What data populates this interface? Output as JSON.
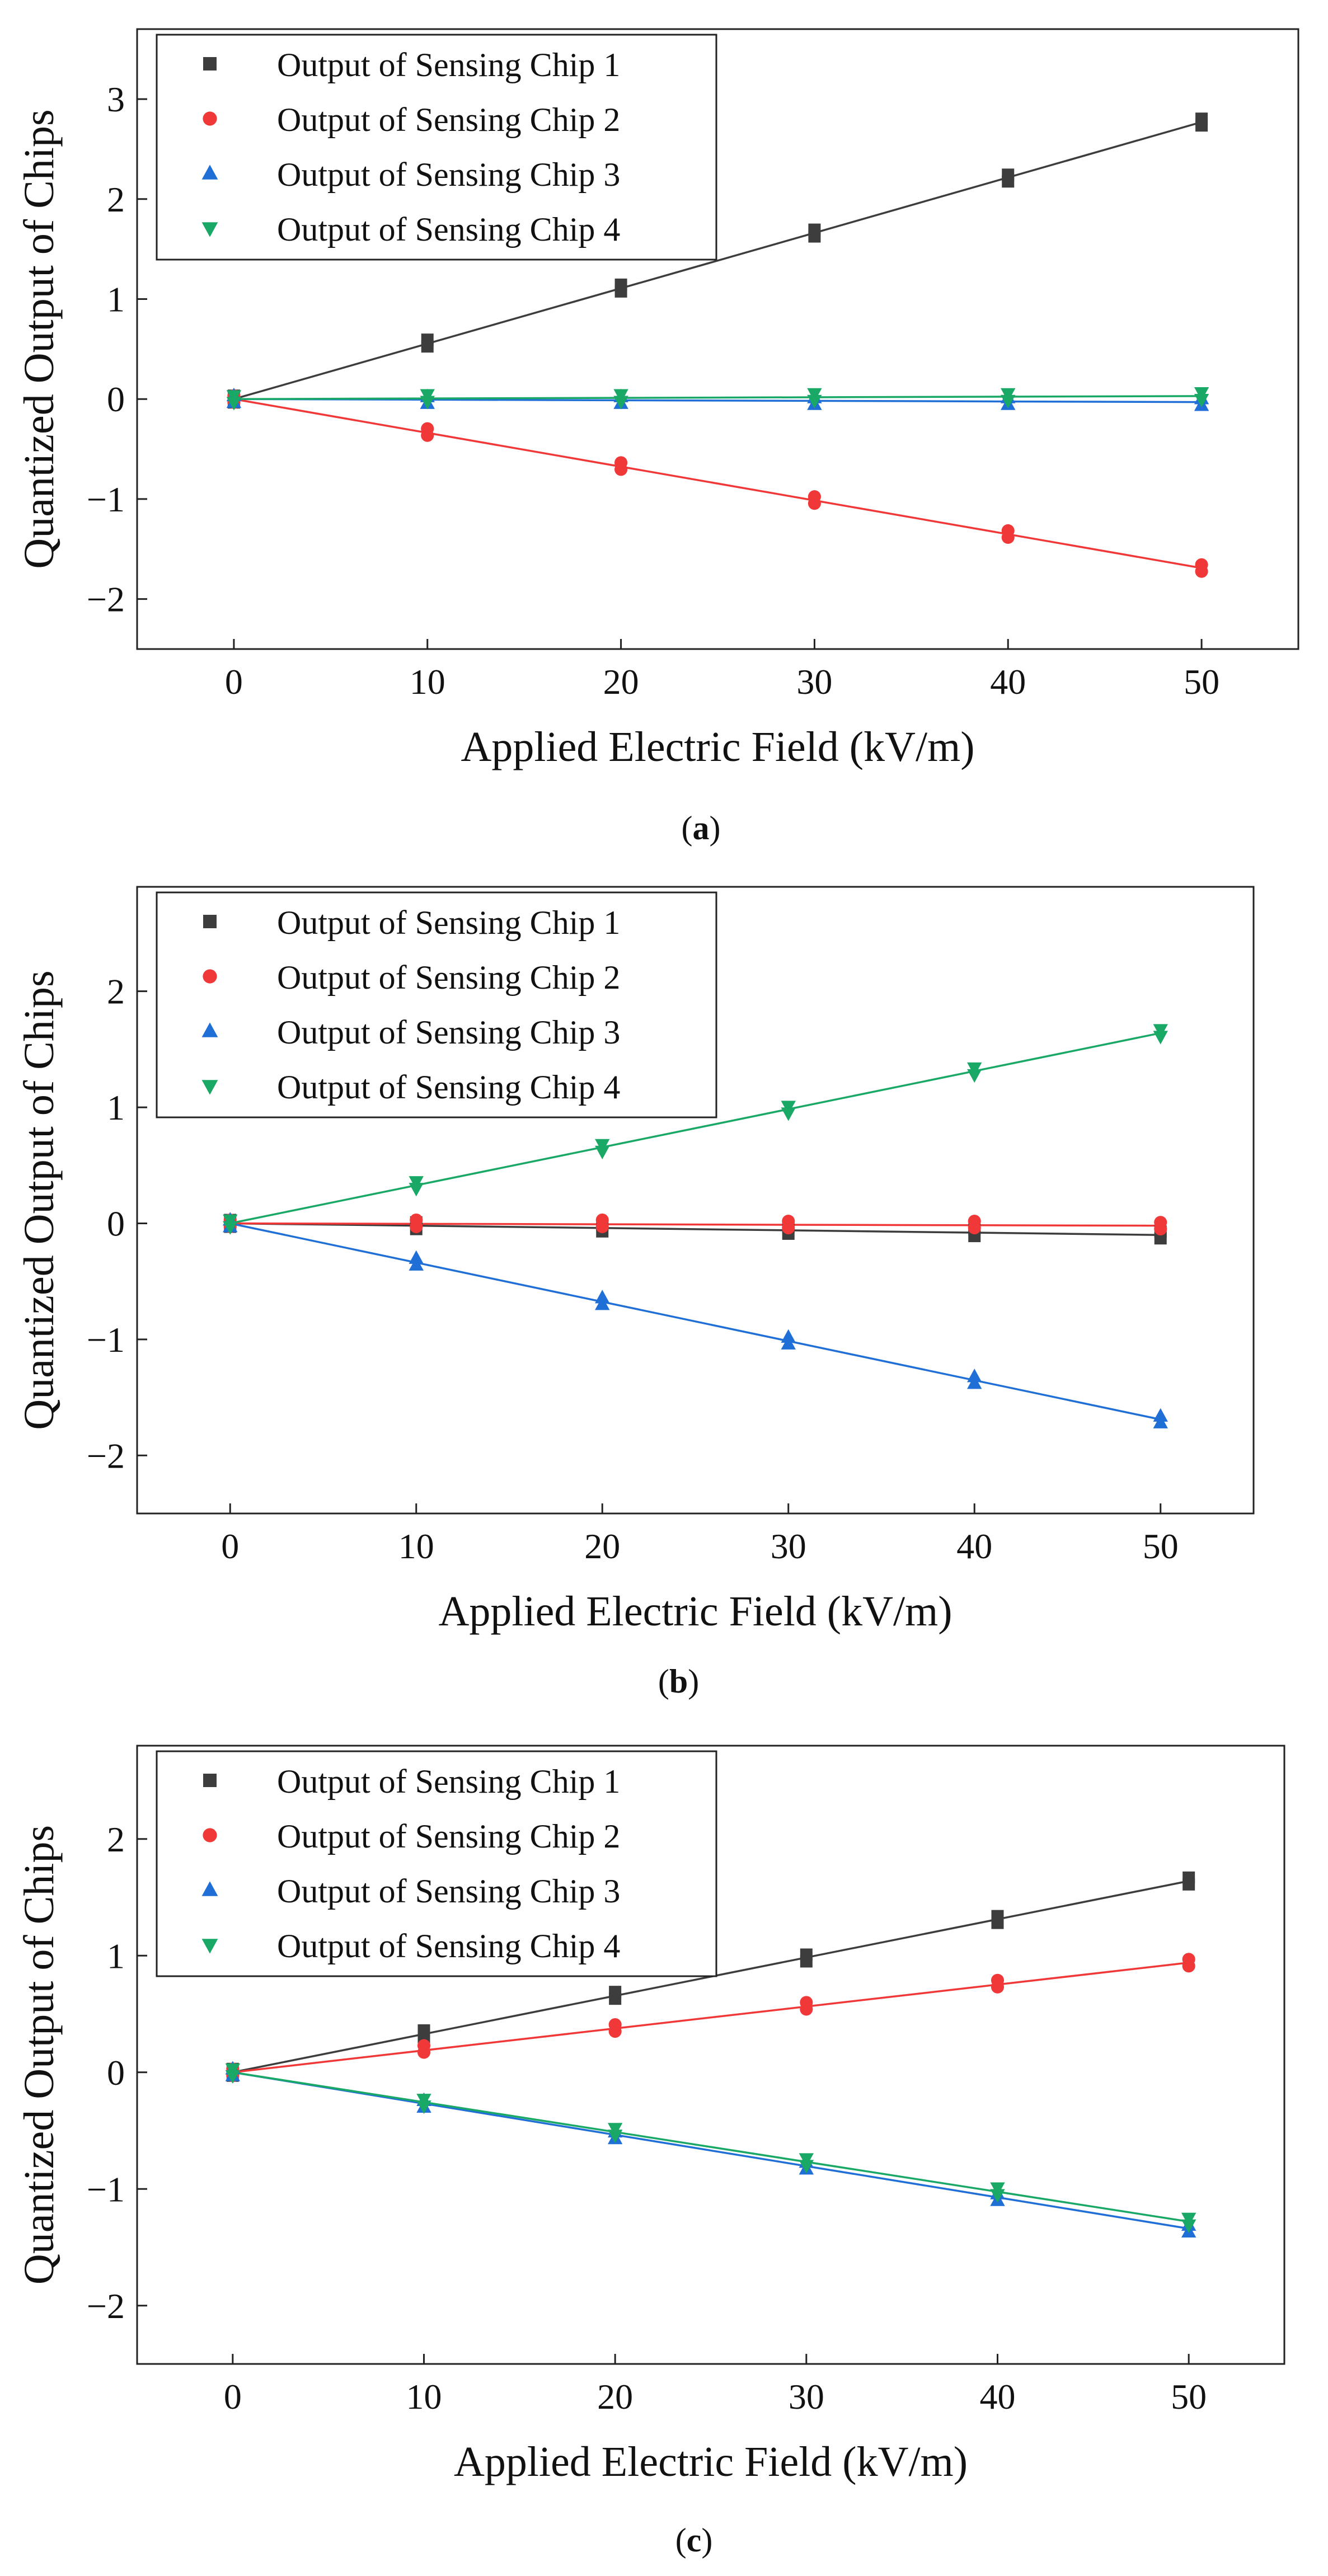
{
  "chart_data": [
    {
      "type": "scatter",
      "panel": "a",
      "caption": "(a)",
      "xlabel": "Applied Electric Field (kV/m)",
      "ylabel": "Quantized Output of Chips",
      "xlim": [
        -5,
        55
      ],
      "ylim": [
        -2.5,
        3.7
      ],
      "xticks": [
        0,
        10,
        20,
        30,
        40,
        50
      ],
      "yticks": [
        -2,
        -1,
        0,
        1,
        2,
        3
      ],
      "legend": "top-left",
      "fit_lines": true,
      "x": [
        0,
        10,
        20,
        30,
        40,
        50
      ],
      "series": [
        {
          "name": "Output of Sensing Chip 1",
          "marker": "square",
          "color": "#3d3d3d",
          "values": [
            0,
            0.56,
            1.11,
            1.66,
            2.21,
            2.77
          ],
          "fit": [
            0,
            2.77
          ]
        },
        {
          "name": "Output of Sensing Chip 2",
          "marker": "circle",
          "color": "#f03838",
          "values": [
            0,
            -0.33,
            -0.67,
            -1.01,
            -1.35,
            -1.69
          ],
          "fit": [
            0,
            -1.69
          ]
        },
        {
          "name": "Output of Sensing Chip 3",
          "marker": "triangle-up",
          "color": "#1f6fd6",
          "values": [
            0,
            -0.01,
            -0.01,
            -0.02,
            -0.02,
            -0.03
          ],
          "fit": [
            0,
            -0.03
          ]
        },
        {
          "name": "Output of Sensing Chip 4",
          "marker": "triangle-down",
          "color": "#19a866",
          "values": [
            0,
            0.01,
            0.01,
            0.02,
            0.02,
            0.03
          ],
          "fit": [
            0,
            0.03
          ]
        }
      ]
    },
    {
      "type": "scatter",
      "panel": "b",
      "caption": "(b)",
      "xlabel": "Applied Electric Field (kV/m)",
      "ylabel": "Quantized Output of Chips",
      "xlim": [
        -5,
        55
      ],
      "ylim": [
        -2.5,
        2.9
      ],
      "xticks": [
        0,
        10,
        20,
        30,
        40,
        50
      ],
      "yticks": [
        -2,
        -1,
        0,
        1,
        2
      ],
      "legend": "top-left",
      "fit_lines": true,
      "x": [
        0,
        10,
        20,
        30,
        40,
        50
      ],
      "series": [
        {
          "name": "Output of Sensing Chip 1",
          "marker": "square",
          "color": "#3d3d3d",
          "values": [
            0,
            -0.02,
            -0.04,
            -0.06,
            -0.08,
            -0.1
          ],
          "fit": [
            0,
            -0.1
          ]
        },
        {
          "name": "Output of Sensing Chip 2",
          "marker": "circle",
          "color": "#f03838",
          "values": [
            0,
            0.0,
            0.0,
            -0.01,
            -0.01,
            -0.02
          ],
          "fit": [
            0,
            -0.02
          ]
        },
        {
          "name": "Output of Sensing Chip 3",
          "marker": "triangle-up",
          "color": "#1f6fd6",
          "values": [
            0,
            -0.33,
            -0.67,
            -1.01,
            -1.35,
            -1.69
          ],
          "fit": [
            0,
            -1.69
          ]
        },
        {
          "name": "Output of Sensing Chip 4",
          "marker": "triangle-down",
          "color": "#19a866",
          "values": [
            0,
            0.33,
            0.65,
            0.98,
            1.31,
            1.64
          ],
          "fit": [
            0,
            1.64
          ]
        }
      ]
    },
    {
      "type": "scatter",
      "panel": "c",
      "caption": "(c)",
      "xlabel": "Applied Electric Field (kV/m)",
      "ylabel": "Quantized Output of Chips",
      "xlim": [
        -5,
        55
      ],
      "ylim": [
        -2.5,
        2.8
      ],
      "xticks": [
        0,
        10,
        20,
        30,
        40,
        50
      ],
      "yticks": [
        -2,
        -1,
        0,
        1,
        2
      ],
      "legend": "top-left",
      "fit_lines": true,
      "x": [
        0,
        10,
        20,
        30,
        40,
        50
      ],
      "series": [
        {
          "name": "Output of Sensing Chip 1",
          "marker": "square",
          "color": "#3d3d3d",
          "values": [
            0,
            0.33,
            0.66,
            0.98,
            1.31,
            1.64
          ],
          "fit": [
            0,
            1.64
          ]
        },
        {
          "name": "Output of Sensing Chip 2",
          "marker": "circle",
          "color": "#f03838",
          "values": [
            0,
            0.2,
            0.38,
            0.57,
            0.76,
            0.94
          ],
          "fit": [
            0,
            0.94
          ]
        },
        {
          "name": "Output of Sensing Chip 3",
          "marker": "triangle-up",
          "color": "#1f6fd6",
          "values": [
            0,
            -0.27,
            -0.54,
            -0.8,
            -1.07,
            -1.34
          ],
          "fit": [
            0,
            -1.34
          ]
        },
        {
          "name": "Output of Sensing Chip 4",
          "marker": "triangle-down",
          "color": "#19a866",
          "values": [
            0,
            -0.26,
            -0.51,
            -0.77,
            -1.02,
            -1.28
          ],
          "fit": [
            0,
            -1.28
          ]
        }
      ]
    }
  ]
}
